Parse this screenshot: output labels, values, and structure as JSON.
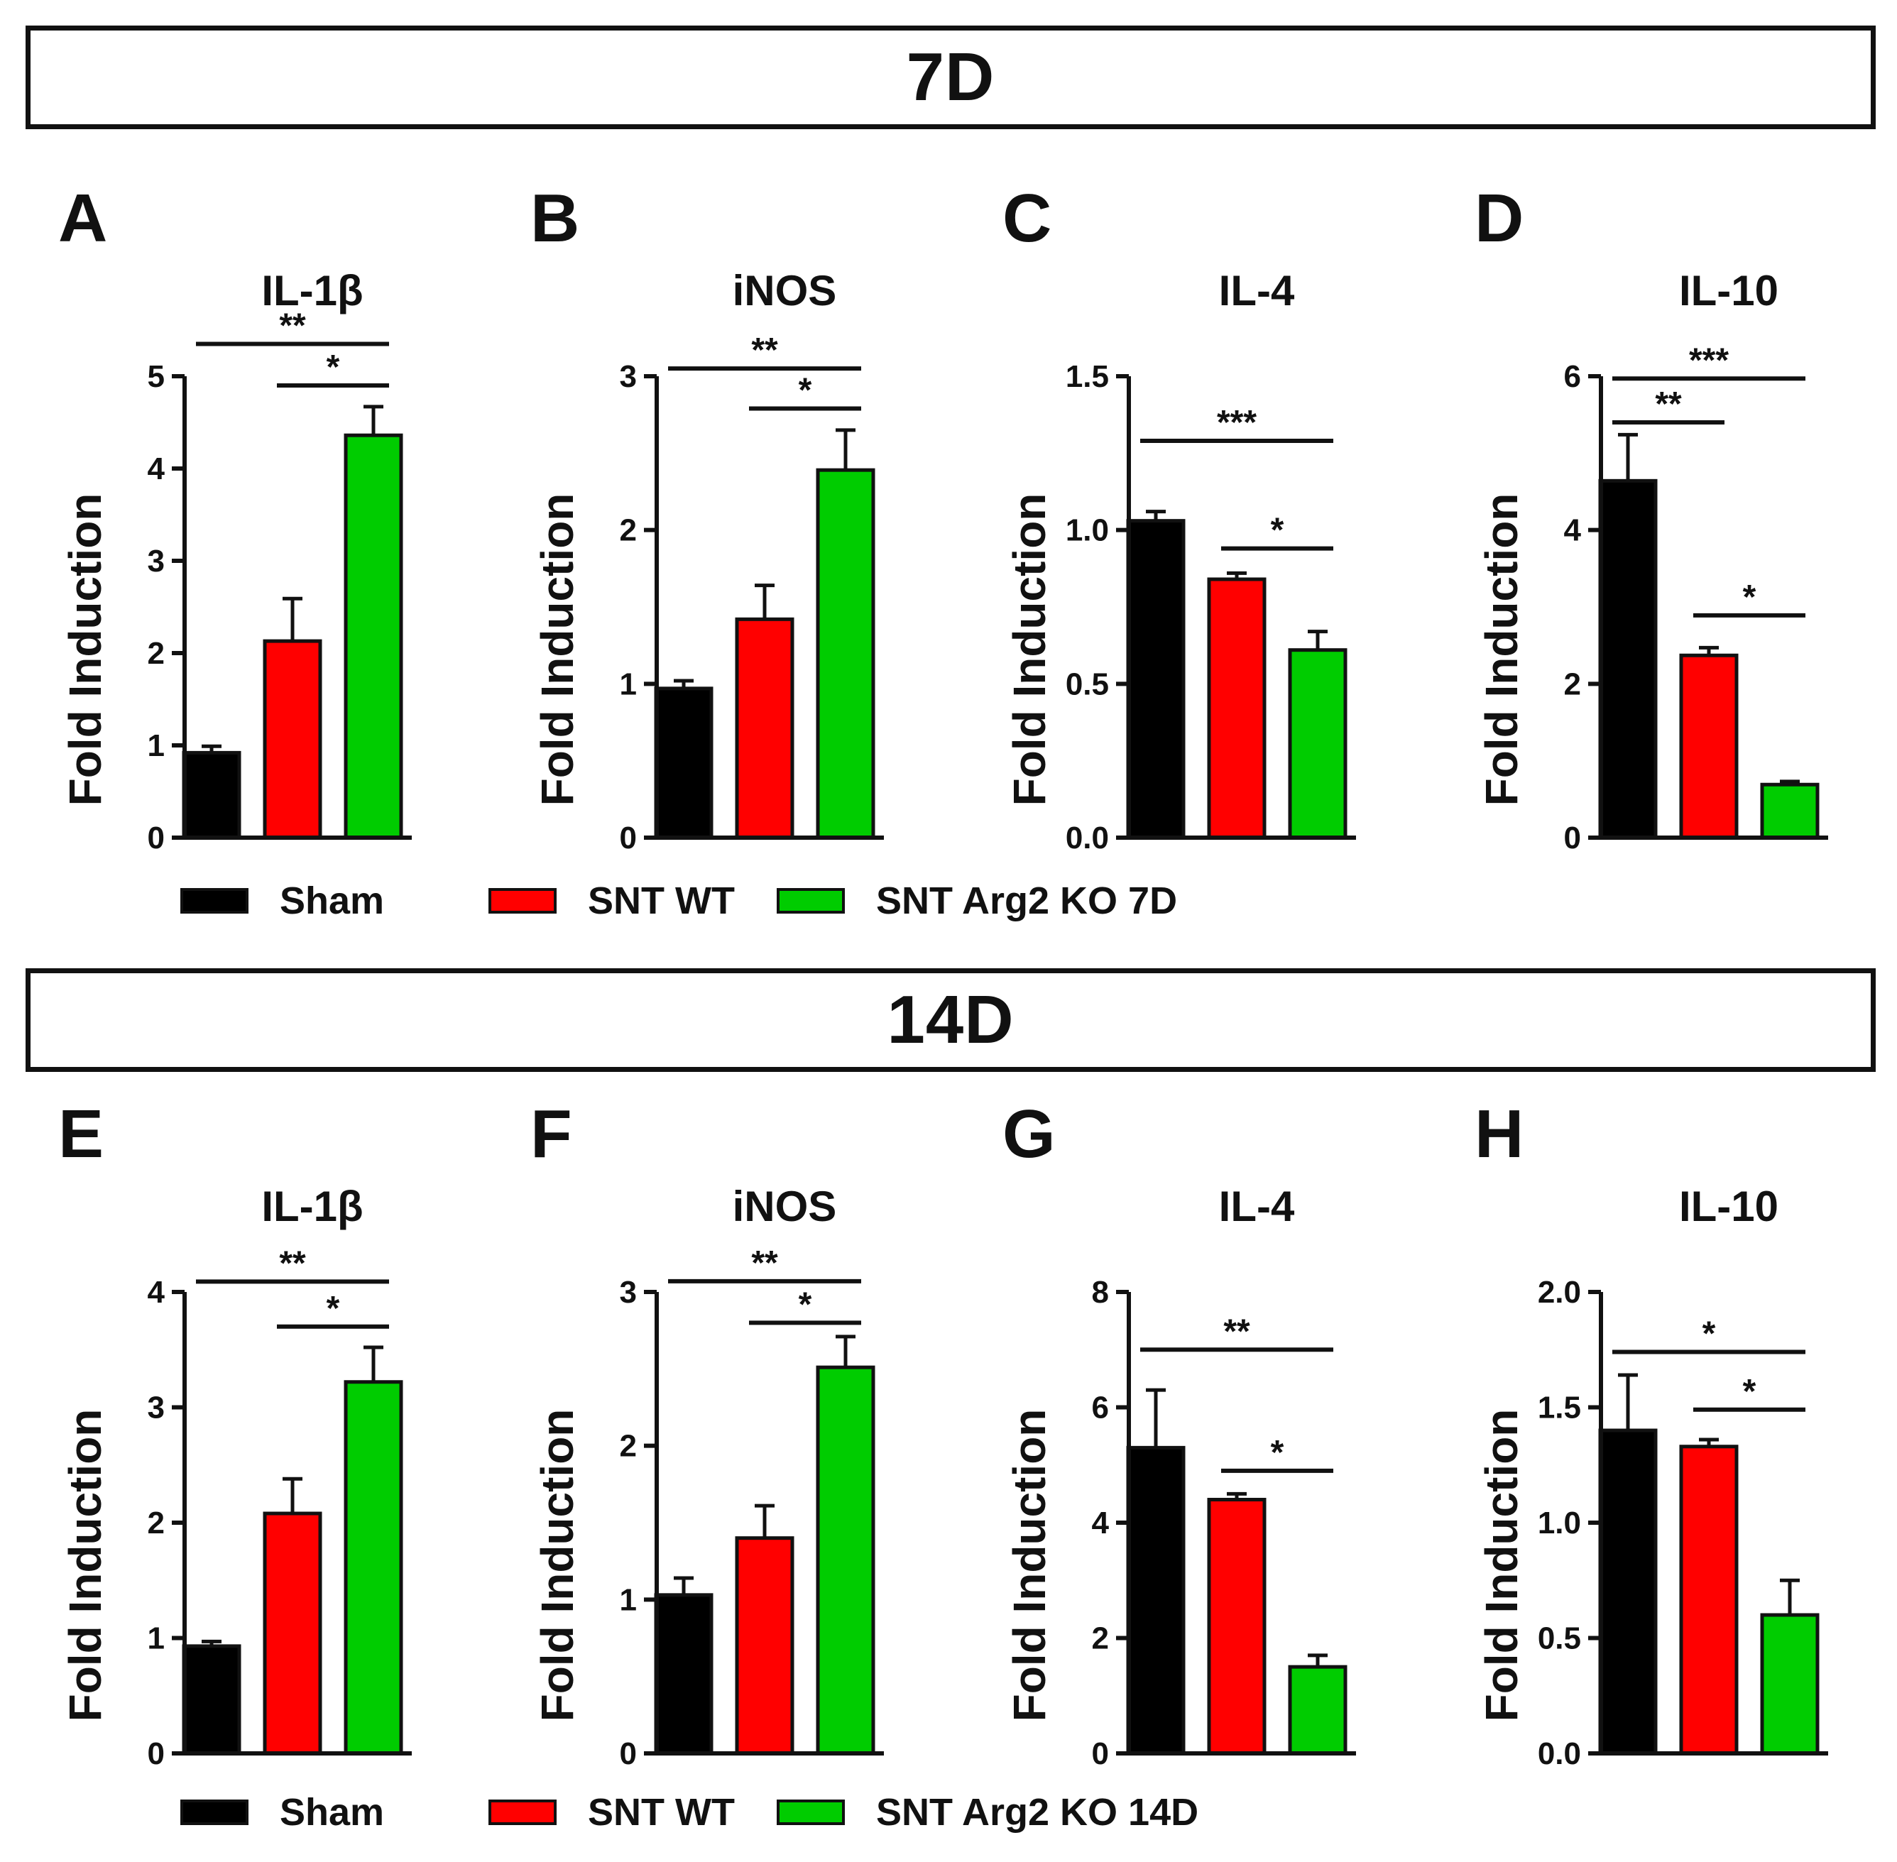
{
  "sections": [
    {
      "id": "top",
      "label": "7D"
    },
    {
      "id": "bottom",
      "label": "14D"
    }
  ],
  "colors": {
    "Sham": "#000000",
    "SNT WT": "#ff0000",
    "SNT Arg2 KO": "#00cc00",
    "axis": "#111111"
  },
  "legends": [
    {
      "items": [
        "Sham",
        "SNT WT",
        "SNT Arg2 KO 7D"
      ],
      "colors": [
        "#000000",
        "#ff0000",
        "#00cc00"
      ]
    },
    {
      "items": [
        "Sham",
        "SNT WT",
        "SNT Arg2 KO 14D"
      ],
      "colors": [
        "#000000",
        "#ff0000",
        "#00cc00"
      ]
    }
  ],
  "chart_data": [
    {
      "panel": "A",
      "type": "bar",
      "title": "IL-1β",
      "ylabel": "Fold Induction",
      "categories": [
        "Sham",
        "SNT WT",
        "SNT Arg2 KO"
      ],
      "values": [
        0.92,
        2.13,
        4.36
      ],
      "errors": [
        0.07,
        0.46,
        0.31
      ],
      "ylim": [
        0,
        5
      ],
      "yticks": [
        "0",
        "1",
        "2",
        "3",
        "4",
        "5"
      ],
      "ytick_values": [
        0,
        1,
        2,
        3,
        4,
        5
      ],
      "significance": [
        {
          "from": 0,
          "to": 2,
          "label": "**",
          "y": 5.35
        },
        {
          "from": 1,
          "to": 2,
          "label": "*",
          "y": 4.9
        }
      ]
    },
    {
      "panel": "B",
      "type": "bar",
      "title": "iNOS",
      "ylabel": "Fold Induction",
      "categories": [
        "Sham",
        "SNT WT",
        "SNT Arg2 KO"
      ],
      "values": [
        0.97,
        1.42,
        2.39
      ],
      "errors": [
        0.05,
        0.22,
        0.26
      ],
      "ylim": [
        0,
        3
      ],
      "yticks": [
        "0",
        "1",
        "2",
        "3"
      ],
      "ytick_values": [
        0,
        1,
        2,
        3
      ],
      "significance": [
        {
          "from": 0,
          "to": 2,
          "label": "**",
          "y": 3.05
        },
        {
          "from": 1,
          "to": 2,
          "label": "*",
          "y": 2.79
        }
      ]
    },
    {
      "panel": "C",
      "type": "bar",
      "title": "IL-4",
      "ylabel": "Fold Induction",
      "categories": [
        "Sham",
        "SNT WT",
        "SNT Arg2 KO"
      ],
      "values": [
        1.03,
        0.84,
        0.61
      ],
      "errors": [
        0.03,
        0.02,
        0.06
      ],
      "ylim": [
        0,
        1.5
      ],
      "yticks": [
        "0.0",
        "0.5",
        "1.0",
        "1.5"
      ],
      "ytick_values": [
        0,
        0.5,
        1.0,
        1.5
      ],
      "significance": [
        {
          "from": 0,
          "to": 2,
          "label": "***",
          "y": 1.29
        },
        {
          "from": 1,
          "to": 2,
          "label": "*",
          "y": 0.94
        }
      ]
    },
    {
      "panel": "D",
      "type": "bar",
      "title": "IL-10",
      "ylabel": "Fold Induction",
      "categories": [
        "Sham",
        "SNT WT",
        "SNT Arg2 KO"
      ],
      "values": [
        4.64,
        2.37,
        0.69
      ],
      "errors": [
        0.6,
        0.1,
        0.04
      ],
      "ylim": [
        0,
        6
      ],
      "yticks": [
        "0",
        "2",
        "4",
        "6"
      ],
      "ytick_values": [
        0,
        2,
        4,
        6
      ],
      "significance": [
        {
          "from": 0,
          "to": 2,
          "label": "***",
          "y": 5.97
        },
        {
          "from": 0,
          "to": 1,
          "label": "**",
          "y": 5.4
        },
        {
          "from": 1,
          "to": 2,
          "label": "*",
          "y": 2.89
        }
      ]
    },
    {
      "panel": "E",
      "type": "bar",
      "title": "IL-1β",
      "ylabel": "Fold Induction",
      "categories": [
        "Sham",
        "SNT WT",
        "SNT Arg2 KO"
      ],
      "values": [
        0.93,
        2.08,
        3.22
      ],
      "errors": [
        0.04,
        0.3,
        0.3
      ],
      "ylim": [
        0,
        4
      ],
      "yticks": [
        "0",
        "1",
        "2",
        "3",
        "4"
      ],
      "ytick_values": [
        0,
        1,
        2,
        3,
        4
      ],
      "significance": [
        {
          "from": 0,
          "to": 2,
          "label": "**",
          "y": 4.09
        },
        {
          "from": 1,
          "to": 2,
          "label": "*",
          "y": 3.7
        }
      ]
    },
    {
      "panel": "F",
      "type": "bar",
      "title": "iNOS",
      "ylabel": "Fold Induction",
      "categories": [
        "Sham",
        "SNT WT",
        "SNT Arg2 KO"
      ],
      "values": [
        1.03,
        1.4,
        2.51
      ],
      "errors": [
        0.11,
        0.21,
        0.2
      ],
      "ylim": [
        0,
        3
      ],
      "yticks": [
        "0",
        "1",
        "2",
        "3"
      ],
      "ytick_values": [
        0,
        1,
        2,
        3
      ],
      "significance": [
        {
          "from": 0,
          "to": 2,
          "label": "**",
          "y": 3.07
        },
        {
          "from": 1,
          "to": 2,
          "label": "*",
          "y": 2.8
        }
      ]
    },
    {
      "panel": "G",
      "type": "bar",
      "title": "IL-4",
      "ylabel": "Fold Induction",
      "categories": [
        "Sham",
        "SNT WT",
        "SNT Arg2 KO"
      ],
      "values": [
        5.3,
        4.4,
        1.5
      ],
      "errors": [
        1.0,
        0.1,
        0.2
      ],
      "ylim": [
        0,
        8
      ],
      "yticks": [
        "0",
        "2",
        "4",
        "6",
        "8"
      ],
      "ytick_values": [
        0,
        2,
        4,
        6,
        8
      ],
      "significance": [
        {
          "from": 0,
          "to": 2,
          "label": "**",
          "y": 7.0
        },
        {
          "from": 1,
          "to": 2,
          "label": "*",
          "y": 4.9
        }
      ]
    },
    {
      "panel": "H",
      "type": "bar",
      "title": "IL-10",
      "ylabel": "Fold Induction",
      "categories": [
        "Sham",
        "SNT WT",
        "SNT Arg2 KO"
      ],
      "values": [
        1.4,
        1.33,
        0.6
      ],
      "errors": [
        0.24,
        0.03,
        0.15
      ],
      "ylim": [
        0,
        2.0
      ],
      "yticks": [
        "0.0",
        "0.5",
        "1.0",
        "1.5",
        "2.0"
      ],
      "ytick_values": [
        0,
        0.5,
        1.0,
        1.5,
        2.0
      ],
      "significance": [
        {
          "from": 0,
          "to": 2,
          "label": "*",
          "y": 1.74
        },
        {
          "from": 1,
          "to": 2,
          "label": "*",
          "y": 1.49
        }
      ]
    }
  ]
}
